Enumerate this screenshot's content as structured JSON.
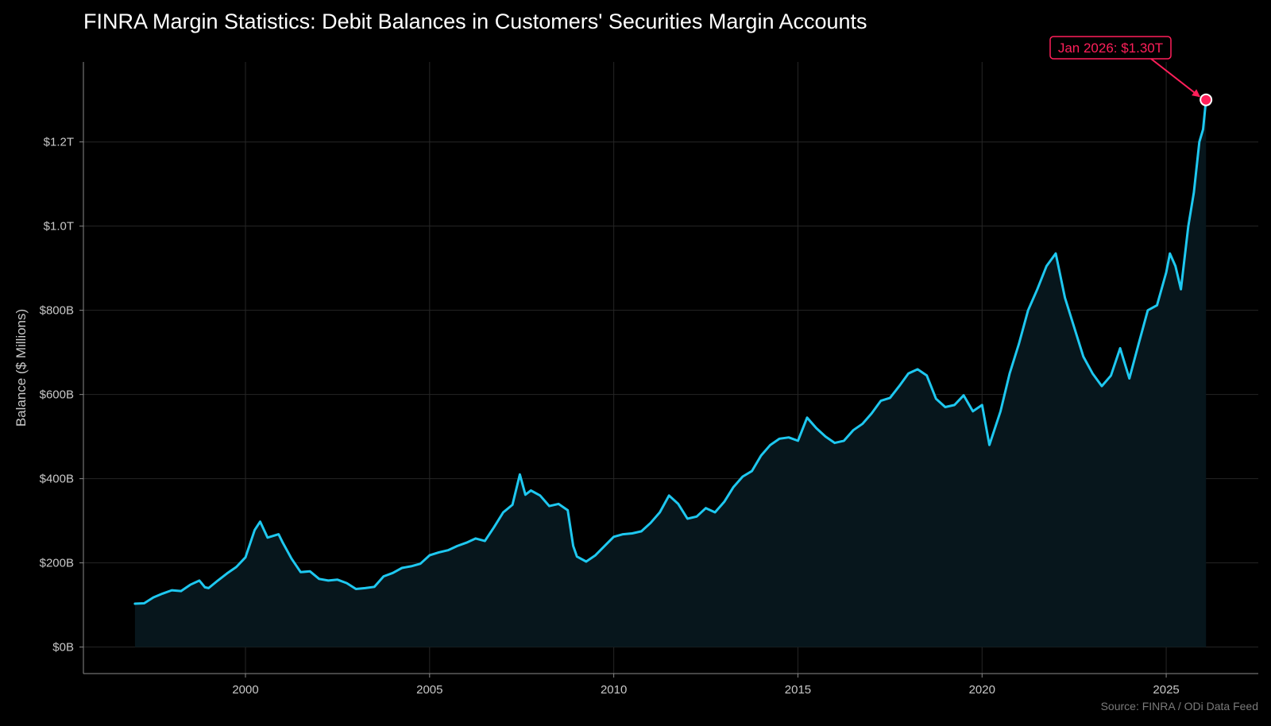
{
  "chart_data": {
    "type": "area",
    "title": "FINRA Margin Statistics: Debit Balances in Customers' Securities Margin Accounts",
    "ylabel": "Balance ($ Millions)",
    "xlabel": "",
    "source": "Source: FINRA / ODi Data Feed",
    "xlim": [
      1995.6,
      2027.5
    ],
    "ylim": [
      -63000,
      1390000
    ],
    "grid": true,
    "colors": {
      "line": "#1ec8f0",
      "fill": "#07161c",
      "grid": "#262626",
      "annotation": "#ff1f5a",
      "background": "#000000"
    },
    "x_ticks": [
      {
        "value": 2000,
        "label": "2000"
      },
      {
        "value": 2005,
        "label": "2005"
      },
      {
        "value": 2010,
        "label": "2010"
      },
      {
        "value": 2015,
        "label": "2015"
      },
      {
        "value": 2020,
        "label": "2020"
      },
      {
        "value": 2025,
        "label": "2025"
      }
    ],
    "y_ticks": [
      {
        "value": 0,
        "label": "$0B"
      },
      {
        "value": 200000,
        "label": "$200B"
      },
      {
        "value": 400000,
        "label": "$400B"
      },
      {
        "value": 600000,
        "label": "$600B"
      },
      {
        "value": 800000,
        "label": "$800B"
      },
      {
        "value": 1000000,
        "label": "$1.0T"
      },
      {
        "value": 1200000,
        "label": "$1.2T"
      }
    ],
    "series": [
      {
        "values": [
          [
            1997.0,
            103000
          ],
          [
            1997.25,
            104000
          ],
          [
            1997.5,
            118000
          ],
          [
            1997.75,
            127000
          ],
          [
            1998.0,
            135000
          ],
          [
            1998.25,
            133000
          ],
          [
            1998.5,
            148000
          ],
          [
            1998.75,
            158000
          ],
          [
            1998.9,
            142000
          ],
          [
            1999.0,
            140000
          ],
          [
            1999.25,
            158000
          ],
          [
            1999.5,
            175000
          ],
          [
            1999.75,
            190000
          ],
          [
            2000.0,
            213000
          ],
          [
            2000.25,
            278000
          ],
          [
            2000.4,
            298000
          ],
          [
            2000.6,
            260000
          ],
          [
            2000.9,
            268000
          ],
          [
            2001.0,
            250000
          ],
          [
            2001.25,
            210000
          ],
          [
            2001.5,
            178000
          ],
          [
            2001.75,
            180000
          ],
          [
            2002.0,
            162000
          ],
          [
            2002.25,
            158000
          ],
          [
            2002.5,
            160000
          ],
          [
            2002.75,
            152000
          ],
          [
            2003.0,
            138000
          ],
          [
            2003.25,
            140000
          ],
          [
            2003.5,
            143000
          ],
          [
            2003.75,
            168000
          ],
          [
            2004.0,
            176000
          ],
          [
            2004.25,
            188000
          ],
          [
            2004.5,
            192000
          ],
          [
            2004.75,
            198000
          ],
          [
            2005.0,
            218000
          ],
          [
            2005.25,
            225000
          ],
          [
            2005.5,
            230000
          ],
          [
            2005.75,
            240000
          ],
          [
            2006.0,
            248000
          ],
          [
            2006.25,
            258000
          ],
          [
            2006.5,
            252000
          ],
          [
            2006.75,
            285000
          ],
          [
            2007.0,
            320000
          ],
          [
            2007.25,
            338000
          ],
          [
            2007.45,
            410000
          ],
          [
            2007.6,
            362000
          ],
          [
            2007.75,
            372000
          ],
          [
            2008.0,
            360000
          ],
          [
            2008.25,
            335000
          ],
          [
            2008.5,
            340000
          ],
          [
            2008.75,
            325000
          ],
          [
            2008.9,
            240000
          ],
          [
            2009.0,
            215000
          ],
          [
            2009.25,
            203000
          ],
          [
            2009.5,
            218000
          ],
          [
            2009.75,
            240000
          ],
          [
            2010.0,
            262000
          ],
          [
            2010.25,
            268000
          ],
          [
            2010.5,
            270000
          ],
          [
            2010.75,
            275000
          ],
          [
            2011.0,
            295000
          ],
          [
            2011.25,
            320000
          ],
          [
            2011.5,
            360000
          ],
          [
            2011.75,
            340000
          ],
          [
            2012.0,
            305000
          ],
          [
            2012.25,
            310000
          ],
          [
            2012.5,
            330000
          ],
          [
            2012.75,
            320000
          ],
          [
            2013.0,
            345000
          ],
          [
            2013.25,
            380000
          ],
          [
            2013.5,
            405000
          ],
          [
            2013.75,
            418000
          ],
          [
            2014.0,
            455000
          ],
          [
            2014.25,
            480000
          ],
          [
            2014.5,
            495000
          ],
          [
            2014.75,
            498000
          ],
          [
            2015.0,
            490000
          ],
          [
            2015.25,
            545000
          ],
          [
            2015.5,
            520000
          ],
          [
            2015.75,
            500000
          ],
          [
            2016.0,
            485000
          ],
          [
            2016.25,
            490000
          ],
          [
            2016.5,
            515000
          ],
          [
            2016.75,
            530000
          ],
          [
            2017.0,
            555000
          ],
          [
            2017.25,
            585000
          ],
          [
            2017.5,
            592000
          ],
          [
            2017.75,
            620000
          ],
          [
            2018.0,
            650000
          ],
          [
            2018.25,
            660000
          ],
          [
            2018.5,
            645000
          ],
          [
            2018.75,
            590000
          ],
          [
            2019.0,
            570000
          ],
          [
            2019.25,
            575000
          ],
          [
            2019.5,
            598000
          ],
          [
            2019.75,
            560000
          ],
          [
            2020.0,
            575000
          ],
          [
            2020.2,
            480000
          ],
          [
            2020.5,
            560000
          ],
          [
            2020.75,
            650000
          ],
          [
            2021.0,
            720000
          ],
          [
            2021.25,
            800000
          ],
          [
            2021.5,
            850000
          ],
          [
            2021.75,
            905000
          ],
          [
            2022.0,
            935000
          ],
          [
            2022.25,
            830000
          ],
          [
            2022.5,
            760000
          ],
          [
            2022.75,
            690000
          ],
          [
            2023.0,
            650000
          ],
          [
            2023.25,
            620000
          ],
          [
            2023.5,
            645000
          ],
          [
            2023.75,
            710000
          ],
          [
            2024.0,
            638000
          ],
          [
            2024.25,
            720000
          ],
          [
            2024.5,
            800000
          ],
          [
            2024.75,
            812000
          ],
          [
            2025.0,
            890000
          ],
          [
            2025.1,
            935000
          ],
          [
            2025.25,
            905000
          ],
          [
            2025.4,
            850000
          ],
          [
            2025.6,
            1000000
          ],
          [
            2025.75,
            1080000
          ],
          [
            2025.9,
            1200000
          ],
          [
            2026.0,
            1230000
          ],
          [
            2026.08,
            1300000
          ]
        ]
      }
    ],
    "annotation": {
      "text": "Jan 2026: $1.30T",
      "x": 2026.08,
      "y": 1300000
    }
  }
}
